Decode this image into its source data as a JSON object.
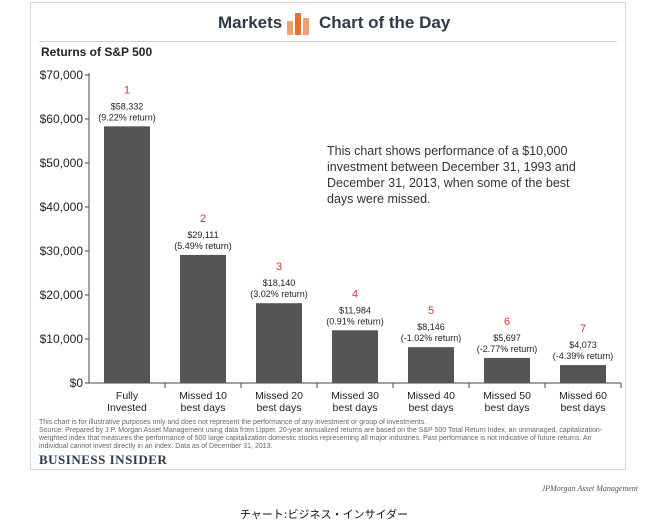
{
  "header": {
    "left": "Markets",
    "right": "Chart of the Day",
    "logo_icon": "bar-chart-logo-icon"
  },
  "note": "This chart shows performance of a $10,000 investment between December 31, 1993 and December 31, 2013, when some of the best days were missed.",
  "footnote": {
    "line1": "This chart is for illustrative purposes only and does not represent the performance of any investment or group of investments.",
    "line2": "Source: Prepared by J.P. Morgan Asset Management using data from Lipper. 20-year annualized returns are based on the S&P 500 Total Return Index, an unmanaged, capitalization-weighted index that measures the performance of 500 large capitalization domestic stocks representing all major industries. Past performance is not indicative of future returns. An individual cannot invest directly in an index. Data as of December 31, 2013."
  },
  "brand": "BUSINESS INSIDER",
  "source": "JPMorgan Asset Management",
  "caption": "チャート:ビジネス・インサイダー",
  "colors": {
    "bar": "#555555",
    "rank": "#e03030",
    "text": "#222222"
  },
  "chart_data": {
    "type": "bar",
    "title": "Returns of S&P 500",
    "categories": [
      "Fully Invested",
      "Missed 10 best days",
      "Missed 20 best days",
      "Missed 30 best days",
      "Missed 40 best days",
      "Missed 50 best days",
      "Missed 60 best days"
    ],
    "category_lines": [
      [
        "Fully",
        "Invested"
      ],
      [
        "Missed 10",
        "best days"
      ],
      [
        "Missed 20",
        "best days"
      ],
      [
        "Missed 30",
        "best days"
      ],
      [
        "Missed 40",
        "best days"
      ],
      [
        "Missed 50",
        "best days"
      ],
      [
        "Missed 60",
        "best days"
      ]
    ],
    "values": [
      58332,
      29111,
      18140,
      11984,
      8146,
      5697,
      4073
    ],
    "value_labels": [
      "$58,332",
      "$29,111",
      "$18,140",
      "$11,984",
      "$8,146",
      "$5,697",
      "$4,073"
    ],
    "return_labels": [
      "(9.22% return)",
      "(5.49% return)",
      "(3.02% return)",
      "(0.91% return)",
      "(-1.02% return)",
      "(-2.77% return)",
      "(-4.39% return)"
    ],
    "ranks": [
      "1",
      "2",
      "3",
      "4",
      "5",
      "6",
      "7"
    ],
    "ylim": [
      0,
      70000
    ],
    "yticks": [
      0,
      10000,
      20000,
      30000,
      40000,
      50000,
      60000,
      70000
    ],
    "ytick_labels": [
      "$0",
      "$10,000",
      "$20,000",
      "$30,000",
      "$40,000",
      "$50,000",
      "$60,000",
      "$70,000"
    ],
    "xlabel": "",
    "ylabel": "",
    "grid": false,
    "legend": "none"
  }
}
